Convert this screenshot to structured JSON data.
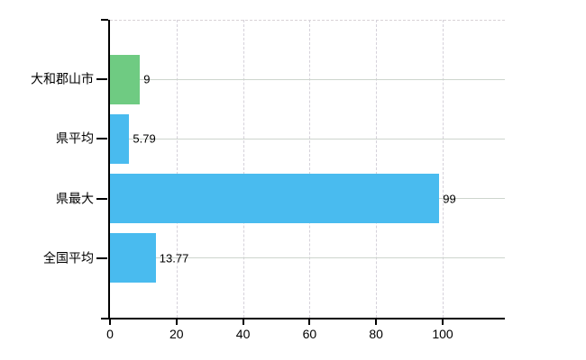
{
  "chart_data": {
    "type": "bar",
    "orientation": "horizontal",
    "title": "",
    "xlabel": "",
    "ylabel": "",
    "categories": [
      "大和郡山市",
      "県平均",
      "県最大",
      "全国平均"
    ],
    "values": [
      9,
      5.79,
      99,
      13.77
    ],
    "value_labels": [
      "9",
      "5.79",
      "99",
      "13.77"
    ],
    "bar_colors": [
      "#6fcb82",
      "#49bbef",
      "#49bbef",
      "#49bbef"
    ],
    "xticks": [
      0,
      20,
      40,
      60,
      80,
      100
    ],
    "xtick_labels": [
      "0",
      "20",
      "40",
      "60",
      "80",
      "100"
    ],
    "xlim": [
      0,
      118.7
    ],
    "grid": "both",
    "legend": "none",
    "colors": {
      "background": "#ffffff",
      "axis": "#000000",
      "h_gridline": "#cdd5cd",
      "v_gridline": "#d5d1da",
      "top_border": "#d8d2d6",
      "text": "#000000"
    }
  }
}
